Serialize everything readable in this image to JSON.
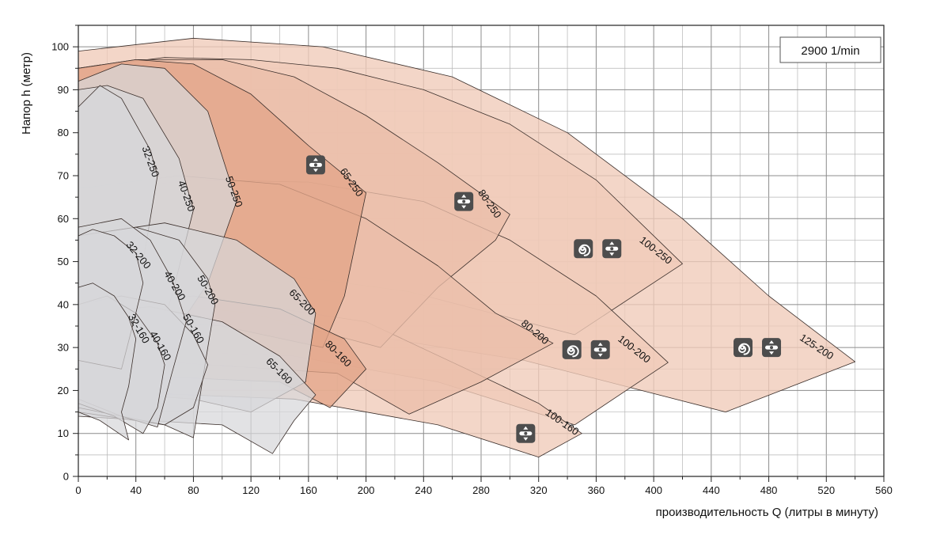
{
  "chart_data": {
    "type": "area",
    "title": "",
    "xlabel": "производительность Q (литры в минуту)",
    "ylabel": "Напор h (метр)",
    "xlim": [
      0,
      560
    ],
    "ylim": [
      0,
      105
    ],
    "x_ticks": [
      0,
      40,
      80,
      120,
      160,
      200,
      240,
      280,
      320,
      360,
      400,
      440,
      480,
      520,
      560
    ],
    "y_ticks": [
      0,
      10,
      20,
      30,
      40,
      50,
      60,
      70,
      80,
      90,
      100
    ],
    "grid": true,
    "speed_label": "2900 1/min",
    "colors": {
      "grey": "#d7d7da",
      "orange_dark": "#e3a589",
      "orange_mid": "#ebbea9",
      "orange_light": "#f0cbb9",
      "icon_bg": "#4d4d4d",
      "outline": "#3a2e2a"
    },
    "regions": [
      {
        "name": "125-200",
        "shade": "orange_light",
        "points": [
          [
            0,
            99
          ],
          [
            80,
            102
          ],
          [
            170,
            100
          ],
          [
            260,
            93
          ],
          [
            340,
            80
          ],
          [
            420,
            60
          ],
          [
            480,
            42
          ],
          [
            540,
            26.7
          ],
          [
            450,
            15
          ],
          [
            310,
            27
          ],
          [
            160,
            35
          ],
          [
            0,
            40
          ]
        ],
        "label": {
          "text": "125-200",
          "at": [
            512,
            29.5
          ],
          "angle": 33
        },
        "icons": [
          "spiral-icon",
          "split-case-icon"
        ],
        "icon_at": [
          472,
          30
        ]
      },
      {
        "name": "100-250",
        "shade": "orange_light",
        "points": [
          [
            0,
            95
          ],
          [
            60,
            97.5
          ],
          [
            120,
            97
          ],
          [
            180,
            95
          ],
          [
            240,
            90
          ],
          [
            300,
            82
          ],
          [
            360,
            69
          ],
          [
            420,
            49.5
          ],
          [
            345,
            33
          ],
          [
            230,
            43
          ],
          [
            120,
            48
          ],
          [
            0,
            50
          ]
        ],
        "label": {
          "text": "100-250",
          "at": [
            400,
            52
          ],
          "angle": 38
        },
        "icons": [
          "spiral-icon",
          "split-case-icon"
        ],
        "icon_at": [
          361,
          53
        ]
      },
      {
        "name": "100-200",
        "shade": "orange_light",
        "points": [
          [
            0,
            66
          ],
          [
            80,
            69
          ],
          [
            160,
            68.5
          ],
          [
            240,
            64
          ],
          [
            300,
            55
          ],
          [
            360,
            42
          ],
          [
            410,
            26.5
          ],
          [
            345,
            12
          ],
          [
            250,
            22
          ],
          [
            150,
            28
          ],
          [
            0,
            30
          ]
        ],
        "label": {
          "text": "100-200",
          "at": [
            385,
            29
          ],
          "angle": 38
        },
        "icons": [
          "spiral-icon",
          "split-case-icon"
        ],
        "icon_at": [
          353,
          29.5
        ]
      },
      {
        "name": "100-160",
        "shade": "orange_light",
        "points": [
          [
            0,
            40
          ],
          [
            100,
            41
          ],
          [
            200,
            36
          ],
          [
            270,
            25
          ],
          [
            320,
            17
          ],
          [
            350,
            10
          ],
          [
            320,
            4.5
          ],
          [
            250,
            12
          ],
          [
            150,
            18
          ],
          [
            0,
            20
          ]
        ],
        "label": {
          "text": "100-160",
          "at": [
            335,
            12
          ],
          "angle": 35
        },
        "icons": [
          "split-case-icon"
        ],
        "icon_at": [
          311,
          10
        ]
      },
      {
        "name": "80-250",
        "shade": "orange_mid",
        "points": [
          [
            0,
            95
          ],
          [
            40,
            97
          ],
          [
            100,
            97
          ],
          [
            150,
            93
          ],
          [
            200,
            84
          ],
          [
            250,
            73
          ],
          [
            300,
            61
          ],
          [
            290,
            55
          ],
          [
            250,
            44
          ],
          [
            210,
            30
          ],
          [
            120,
            38
          ],
          [
            0,
            42
          ]
        ],
        "label": {
          "text": "80-250",
          "at": [
            284,
            63
          ],
          "angle": 55
        },
        "icons": [
          "split-case-icon"
        ],
        "icon_at": [
          268,
          64
        ]
      },
      {
        "name": "80-200",
        "shade": "orange_mid",
        "points": [
          [
            0,
            67
          ],
          [
            70,
            70
          ],
          [
            140,
            68
          ],
          [
            200,
            60
          ],
          [
            250,
            49
          ],
          [
            290,
            38
          ],
          [
            330,
            31
          ],
          [
            280,
            22
          ],
          [
            230,
            14.5
          ],
          [
            180,
            24
          ],
          [
            0,
            28
          ]
        ],
        "label": {
          "text": "80-200",
          "at": [
            316,
            33
          ],
          "angle": 40
        },
        "icons": [],
        "icon_at": null
      },
      {
        "name": "65-250",
        "shade": "orange_dark",
        "points": [
          [
            0,
            95
          ],
          [
            40,
            97
          ],
          [
            80,
            96
          ],
          [
            120,
            89
          ],
          [
            160,
            77
          ],
          [
            200,
            66
          ],
          [
            185,
            42
          ],
          [
            170,
            30
          ],
          [
            100,
            35
          ],
          [
            0,
            38
          ]
        ],
        "label": {
          "text": "65-250",
          "at": [
            188,
            68
          ],
          "angle": 55
        },
        "icons": [
          "split-case-icon"
        ],
        "icon_at": [
          165,
          72.5
        ]
      },
      {
        "name": "80-160",
        "shade": "orange_dark",
        "points": [
          [
            0,
            40
          ],
          [
            80,
            42
          ],
          [
            140,
            39
          ],
          [
            185,
            32
          ],
          [
            200,
            25
          ],
          [
            175,
            16
          ],
          [
            140,
            22
          ],
          [
            0,
            24
          ]
        ],
        "label": {
          "text": "80-160",
          "at": [
            179,
            28
          ],
          "angle": 45
        },
        "icons": [],
        "icon_at": null
      },
      {
        "name": "50-250",
        "shade": "grey",
        "points": [
          [
            0,
            92
          ],
          [
            30,
            96
          ],
          [
            60,
            95
          ],
          [
            90,
            85
          ],
          [
            110,
            64
          ],
          [
            90,
            45
          ],
          [
            60,
            30
          ],
          [
            0,
            33
          ]
        ],
        "label": {
          "text": "50-250",
          "at": [
            106,
            66
          ],
          "angle": 70
        },
        "icons": [],
        "icon_at": null
      },
      {
        "name": "40-250",
        "shade": "grey",
        "points": [
          [
            0,
            90
          ],
          [
            20,
            91
          ],
          [
            45,
            88
          ],
          [
            70,
            74
          ],
          [
            80,
            62
          ],
          [
            65,
            42
          ],
          [
            45,
            22
          ],
          [
            0,
            28
          ]
        ],
        "label": {
          "text": "40-250",
          "at": [
            73,
            65
          ],
          "angle": 70
        },
        "icons": [],
        "icon_at": null
      },
      {
        "name": "32-250",
        "shade": "grey",
        "points": [
          [
            0,
            86
          ],
          [
            15,
            91
          ],
          [
            30,
            88
          ],
          [
            50,
            76
          ],
          [
            55,
            70
          ],
          [
            45,
            50
          ],
          [
            35,
            22
          ],
          [
            0,
            25
          ]
        ],
        "label": {
          "text": "32-250",
          "at": [
            48,
            73
          ],
          "angle": 70
        },
        "icons": [],
        "icon_at": null
      },
      {
        "name": "65-200",
        "shade": "grey",
        "points": [
          [
            0,
            56
          ],
          [
            60,
            59
          ],
          [
            110,
            55
          ],
          [
            150,
            46
          ],
          [
            165,
            38
          ],
          [
            158,
            22
          ],
          [
            120,
            15
          ],
          [
            80,
            18
          ],
          [
            0,
            20
          ]
        ],
        "label": {
          "text": "65-200",
          "at": [
            154,
            40
          ],
          "angle": 45
        },
        "icons": [],
        "icon_at": null
      },
      {
        "name": "65-160",
        "shade": "grey",
        "points": [
          [
            0,
            38
          ],
          [
            50,
            39.5
          ],
          [
            100,
            36
          ],
          [
            140,
            28
          ],
          [
            165,
            19
          ],
          [
            150,
            13
          ],
          [
            135,
            5.3
          ],
          [
            100,
            12
          ],
          [
            0,
            14
          ]
        ],
        "label": {
          "text": "65-160",
          "at": [
            138,
            24
          ],
          "angle": 45
        },
        "icons": [],
        "icon_at": null
      },
      {
        "name": "50-200",
        "shade": "grey",
        "points": [
          [
            0,
            56
          ],
          [
            40,
            58
          ],
          [
            70,
            55
          ],
          [
            90,
            46
          ],
          [
            95,
            40
          ],
          [
            90,
            30
          ],
          [
            80,
            9
          ],
          [
            60,
            12
          ],
          [
            0,
            15
          ]
        ],
        "label": {
          "text": "50-200",
          "at": [
            88,
            43
          ],
          "angle": 60
        },
        "icons": [],
        "icon_at": null
      },
      {
        "name": "50-160",
        "shade": "grey",
        "points": [
          [
            0,
            40
          ],
          [
            30,
            42
          ],
          [
            60,
            40
          ],
          [
            80,
            33
          ],
          [
            90,
            26
          ],
          [
            80,
            16
          ],
          [
            60,
            12
          ],
          [
            0,
            16
          ]
        ],
        "label": {
          "text": "50-160",
          "at": [
            78,
            34
          ],
          "angle": 60
        },
        "icons": [],
        "icon_at": null
      },
      {
        "name": "40-200",
        "shade": "grey",
        "points": [
          [
            0,
            58
          ],
          [
            30,
            60
          ],
          [
            50,
            55
          ],
          [
            65,
            46
          ],
          [
            75,
            36
          ],
          [
            65,
            24
          ],
          [
            55,
            11.5
          ],
          [
            30,
            14
          ],
          [
            0,
            18
          ]
        ],
        "label": {
          "text": "40-200",
          "at": [
            65,
            44
          ],
          "angle": 60
        },
        "icons": [],
        "icon_at": null
      },
      {
        "name": "40-160",
        "shade": "grey",
        "points": [
          [
            0,
            40
          ],
          [
            20,
            42
          ],
          [
            40,
            38
          ],
          [
            55,
            31
          ],
          [
            60,
            26
          ],
          [
            55,
            16
          ],
          [
            45,
            10
          ],
          [
            25,
            14
          ],
          [
            0,
            17
          ]
        ],
        "label": {
          "text": "40-160",
          "at": [
            55,
            30
          ],
          "angle": 60
        },
        "icons": [],
        "icon_at": null
      },
      {
        "name": "32-200",
        "shade": "grey",
        "points": [
          [
            0,
            56
          ],
          [
            10,
            57.5
          ],
          [
            25,
            56
          ],
          [
            40,
            52
          ],
          [
            45,
            45
          ],
          [
            40,
            38
          ],
          [
            30,
            25
          ],
          [
            0,
            27
          ]
        ],
        "label": {
          "text": "32-200",
          "at": [
            40,
            51
          ],
          "angle": 50
        },
        "icons": [],
        "icon_at": null
      },
      {
        "name": "32-160",
        "shade": "grey",
        "points": [
          [
            0,
            44
          ],
          [
            10,
            45
          ],
          [
            25,
            42
          ],
          [
            35,
            37
          ],
          [
            40,
            32
          ],
          [
            35,
            21
          ],
          [
            30,
            15
          ],
          [
            35,
            8.5
          ],
          [
            15,
            13
          ],
          [
            0,
            15
          ]
        ],
        "label": {
          "text": "32-160",
          "at": [
            40,
            34
          ],
          "angle": 60
        },
        "icons": [],
        "icon_at": null
      }
    ]
  }
}
